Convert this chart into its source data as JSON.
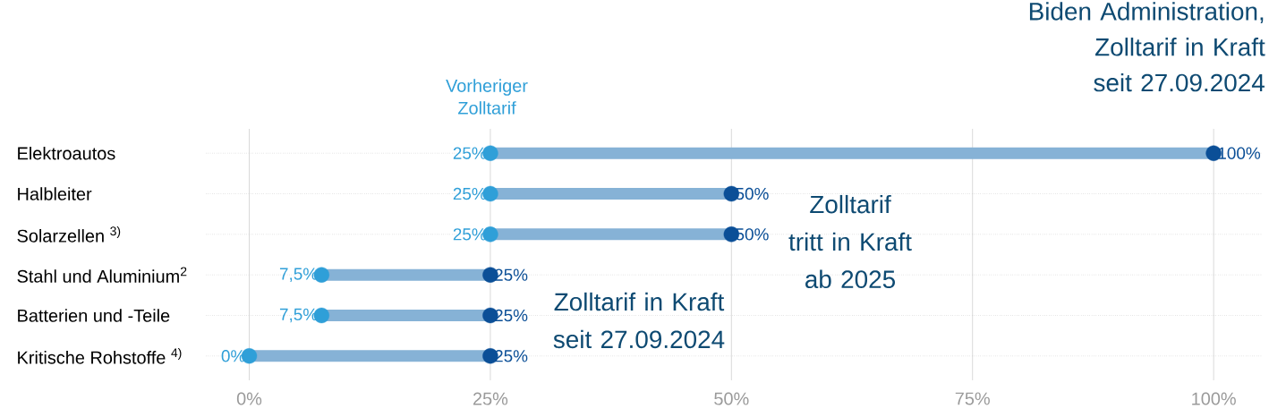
{
  "chart_data": {
    "type": "bar",
    "orientation": "horizontal",
    "categories": [
      "Elektroautos",
      "Halbleiter",
      "Solarzellen $^{3)}$",
      "Stahl und Aluminium$^{2}$",
      "Batterien und -Teile",
      "Kritische Rohstoffe $^{4)}$"
    ],
    "series": [
      {
        "color": "#86b2d6",
        "base": [
          25,
          25,
          25,
          7.5,
          7.5,
          0
        ],
        "values": [
          75,
          25,
          25,
          17.5,
          17.5,
          25
        ]
      },
      {
        "type": "scatter",
        "color": "#2f9fd8",
        "values": [
          25,
          25,
          25,
          7.5,
          7.5,
          0
        ],
        "value_labels": [
          "25%",
          "25%",
          "25%",
          "7,5%",
          "7,5%",
          "0%"
        ]
      },
      {
        "type": "scatter",
        "color": "#0b4f97",
        "values": [
          100,
          50,
          50,
          25,
          25,
          25
        ],
        "value_labels": [
          "100%",
          "50%",
          "50%",
          "25%",
          "25%",
          "25%"
        ]
      }
    ],
    "marker": "circle",
    "xlim": [
      -4.5,
      105
    ],
    "xticks": [
      {
        "value": 0,
        "label": "0%"
      },
      {
        "value": 25,
        "label": "25%"
      },
      {
        "value": 50,
        "label": "50%"
      },
      {
        "value": 75,
        "label": "75%"
      },
      {
        "value": 100,
        "label": "100%"
      }
    ],
    "grid": true,
    "annotations": [
      "Vorheriger Zolltarif",
      "Biden Administration, Zolltarif in Kraft seit 27.09.2024",
      "Zolltarif tritt in Kraft ab 2025",
      "Zolltarif in Kraft seit 27.09.2024"
    ]
  }
}
